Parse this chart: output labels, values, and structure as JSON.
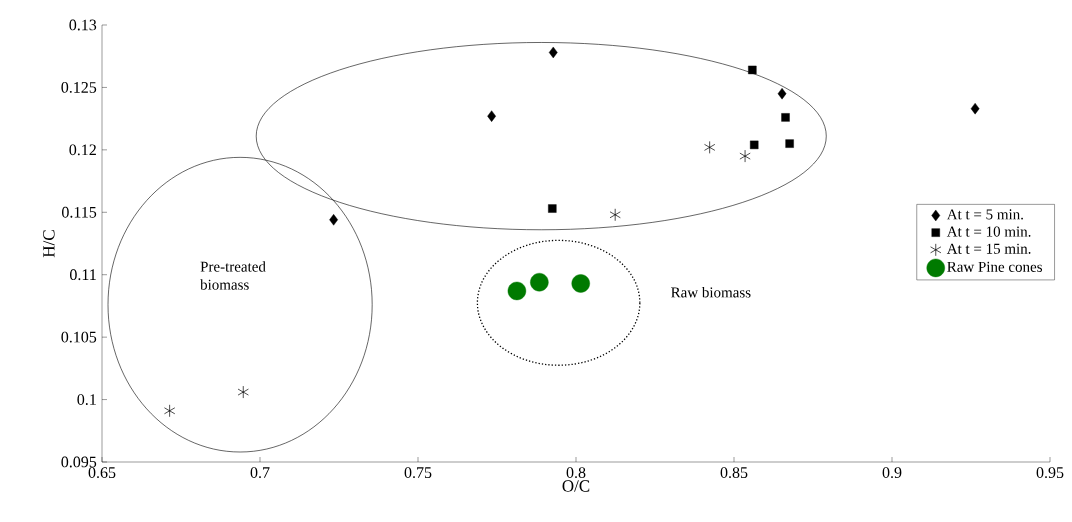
{
  "chart_data": {
    "type": "scatter",
    "xlabel": "O/C",
    "ylabel": "H/C",
    "xlim": [
      0.65,
      0.95
    ],
    "ylim": [
      0.095,
      0.13
    ],
    "xticks": [
      0.65,
      0.7,
      0.75,
      0.8,
      0.85,
      0.9,
      0.95
    ],
    "yticks": [
      0.095,
      0.1,
      0.105,
      0.11,
      0.115,
      0.12,
      0.125,
      0.13
    ],
    "grid": false,
    "legend": "right",
    "series": [
      {
        "name": "At t = 5 min.",
        "color": "#000000",
        "marker": "diamond",
        "x": [
          0.7233,
          0.7733,
          0.7928,
          0.8652,
          0.9263
        ],
        "values": [
          0.1144,
          0.1227,
          0.1278,
          0.1245,
          0.1233
        ]
      },
      {
        "name": "At t = 10 min.",
        "color": "#000000",
        "marker": "square",
        "x": [
          0.7925,
          0.8558,
          0.8663,
          0.8564,
          0.8676
        ],
        "values": [
          0.1153,
          0.1264,
          0.1226,
          0.1204,
          0.1205
        ]
      },
      {
        "name": "At t = 15 min.",
        "color": "#000000",
        "marker": "cross",
        "x": [
          0.6714,
          0.6947,
          0.8124,
          0.8423,
          0.8535
        ],
        "values": [
          0.0991,
          0.1006,
          0.1148,
          0.1202,
          0.1195
        ]
      },
      {
        "name": "Raw Pine cones",
        "color": "#007a00",
        "marker": "circle",
        "x": [
          0.7813,
          0.7884,
          0.8015
        ],
        "values": [
          0.1087,
          0.1094,
          0.1093
        ]
      }
    ],
    "annotations": [
      "Pre-treated biomass",
      "Raw biomass"
    ]
  }
}
